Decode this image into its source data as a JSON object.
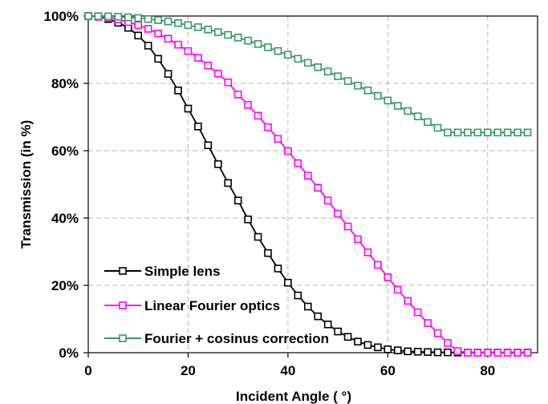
{
  "chart_data": {
    "type": "line",
    "title": "",
    "xlabel": "Incident Angle ( °)",
    "ylabel": "Transmission (in %)",
    "xlim": [
      0,
      90
    ],
    "ylim": [
      0,
      100
    ],
    "x_ticks": [
      0,
      20,
      40,
      60,
      80
    ],
    "x_tick_labels": [
      "0",
      "20",
      "40",
      "60",
      "80"
    ],
    "y_ticks": [
      0,
      20,
      40,
      60,
      80,
      100
    ],
    "y_tick_labels": [
      "0%",
      "20%",
      "40%",
      "60%",
      "80%",
      "100%"
    ],
    "grid": "dashed, partial",
    "legend_position": "bottom-left",
    "x": [
      0,
      2,
      4,
      6,
      8,
      10,
      12,
      14,
      16,
      18,
      20,
      22,
      24,
      26,
      28,
      30,
      32,
      34,
      36,
      38,
      40,
      42,
      44,
      46,
      48,
      50,
      52,
      54,
      56,
      58,
      60,
      62,
      64,
      66,
      68,
      70,
      72,
      74,
      76,
      78,
      80,
      82,
      84,
      86,
      88
    ],
    "series": [
      {
        "name": "Simple lens",
        "color": "#000000",
        "marker": "square",
        "values": [
          100,
          99.8,
          99.1,
          98,
          96.5,
          94.2,
          91.2,
          87.3,
          82.8,
          77.9,
          72.5,
          67.2,
          61.6,
          56,
          50.4,
          45.2,
          39.6,
          34.4,
          29.6,
          25,
          20.8,
          17,
          13.7,
          10.8,
          8.4,
          6.3,
          4.7,
          3.3,
          2.3,
          1.6,
          1.0,
          0.7,
          0.4,
          0.3,
          0.2,
          0.1,
          0.1,
          0.05,
          0.05,
          0.05,
          0.05,
          0.05,
          0.05,
          0.05,
          0.05
        ]
      },
      {
        "name": "Linear Fourier optics",
        "color": "#ff00ff",
        "marker": "square",
        "values": [
          100,
          99.8,
          99.5,
          99,
          98.2,
          97.3,
          96.2,
          94.8,
          93.3,
          91.5,
          89.6,
          87.6,
          85.3,
          82.9,
          80.3,
          76.7,
          73.6,
          70.4,
          67,
          63.5,
          59.9,
          56.3,
          52.6,
          49,
          45.2,
          41.3,
          37.5,
          33.7,
          29.8,
          26.1,
          22.4,
          18.7,
          15.4,
          12,
          8.8,
          5.8,
          2.9,
          0.5,
          0,
          0,
          0,
          0,
          0,
          0,
          0
        ]
      },
      {
        "name": "Fourier + cosinus correction",
        "color": "#339966",
        "marker": "square",
        "values": [
          100,
          99.95,
          99.9,
          99.8,
          99.6,
          99.4,
          99.1,
          98.8,
          98.4,
          97.9,
          97.3,
          96.7,
          96,
          95.2,
          94.4,
          93.6,
          92.7,
          91.7,
          90.7,
          89.6,
          88.5,
          87.3,
          86.1,
          84.8,
          83.5,
          82.1,
          80.7,
          79.3,
          77.9,
          76.3,
          74.9,
          73.3,
          71.8,
          70.2,
          68.5,
          66.8,
          65.4,
          65.4,
          65.4,
          65.4,
          65.4,
          65.4,
          65.4,
          65.4,
          65.4
        ]
      }
    ]
  }
}
